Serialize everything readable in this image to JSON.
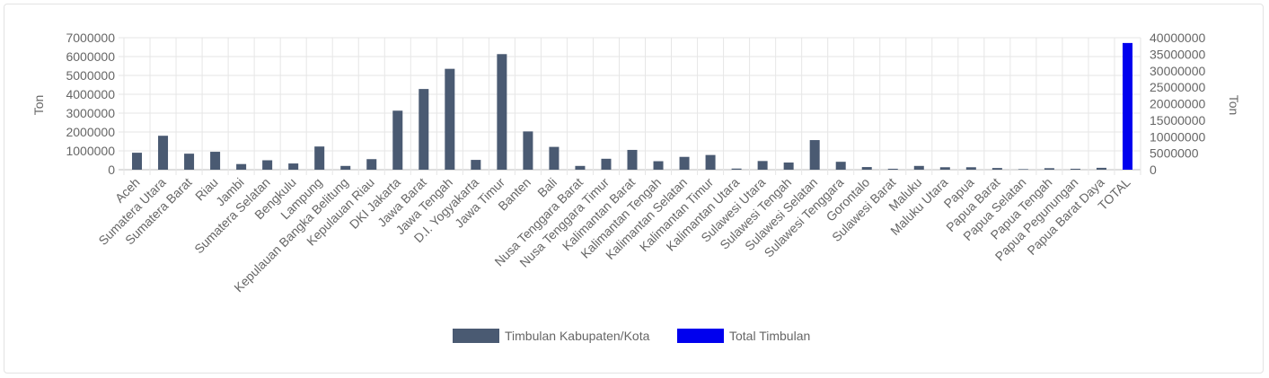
{
  "chart_data": {
    "type": "bar",
    "categories": [
      "Aceh",
      "Sumatera Utara",
      "Sumatera Barat",
      "Riau",
      "Jambi",
      "Sumatera Selatan",
      "Bengkulu",
      "Lampung",
      "Kepulauan Bangka Belitung",
      "Kepulauan Riau",
      "DKI Jakarta",
      "Jawa Barat",
      "Jawa Tengah",
      "D.I. Yogyakarta",
      "Jawa Timur",
      "Banten",
      "Bali",
      "Nusa Tenggara Barat",
      "Nusa Tenggara Timur",
      "Kalimantan Barat",
      "Kalimantan Tengah",
      "Kalimantan Selatan",
      "Kalimantan Timur",
      "Kalimantan Utara",
      "Sulawesi Utara",
      "Sulawesi Tengah",
      "Sulawesi Selatan",
      "Sulawesi Tenggara",
      "Gorontalo",
      "Sulawesi Barat",
      "Maluku",
      "Maluku Utara",
      "Papua",
      "Papua Barat",
      "Papua Selatan",
      "Papua Tengah",
      "Papua Pegunungan",
      "Papua Barat Daya",
      "TOTAL"
    ],
    "series": [
      {
        "name": "Timbulan Kabupaten/Kota",
        "axis": "left",
        "color": "#4a5a72",
        "values": [
          900000,
          1800000,
          850000,
          950000,
          300000,
          500000,
          330000,
          1230000,
          200000,
          560000,
          3130000,
          4280000,
          5350000,
          520000,
          6130000,
          2030000,
          1210000,
          200000,
          580000,
          1050000,
          450000,
          680000,
          780000,
          60000,
          460000,
          380000,
          1570000,
          420000,
          140000,
          50000,
          200000,
          130000,
          130000,
          90000,
          30000,
          80000,
          50000,
          100000,
          null
        ]
      },
      {
        "name": "Total Timbulan",
        "axis": "right",
        "color": "#0000ee",
        "values": [
          null,
          null,
          null,
          null,
          null,
          null,
          null,
          null,
          null,
          null,
          null,
          null,
          null,
          null,
          null,
          null,
          null,
          null,
          null,
          null,
          null,
          null,
          null,
          null,
          null,
          null,
          null,
          null,
          null,
          null,
          null,
          null,
          null,
          null,
          null,
          null,
          null,
          null,
          38400000
        ]
      }
    ],
    "y_left": {
      "label": "Ton",
      "min": 0,
      "max": 7000000,
      "ticks": [
        "0",
        "1000000",
        "2000000",
        "3000000",
        "4000000",
        "5000000",
        "6000000",
        "7000000"
      ]
    },
    "y_right": {
      "label": "Ton",
      "min": 0,
      "max": 40000000,
      "ticks": [
        "0",
        "5000000",
        "10000000",
        "15000000",
        "20000000",
        "25000000",
        "30000000",
        "35000000",
        "40000000"
      ]
    },
    "grid": true,
    "legend": "bottom-center"
  }
}
